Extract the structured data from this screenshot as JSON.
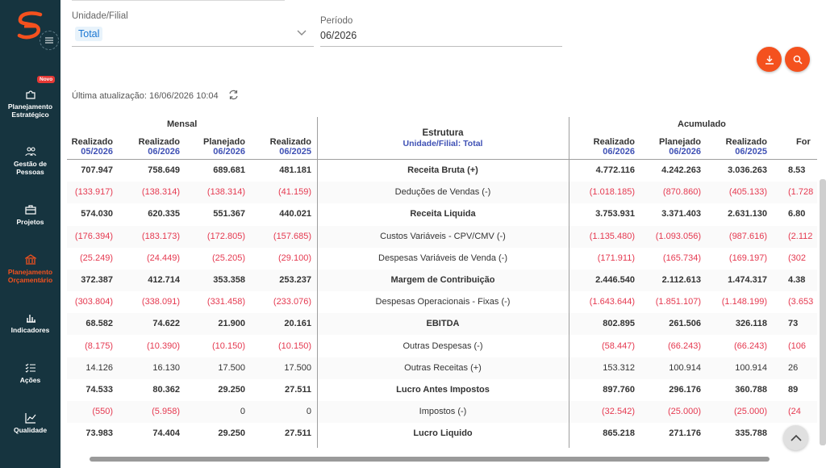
{
  "sidebar": {
    "badge": "Novo",
    "items": [
      {
        "label": "Planejamento Estratégico",
        "icon": "puzzle-icon"
      },
      {
        "label": "Gestão de Pessoas",
        "icon": "people-icon"
      },
      {
        "label": "Projetos",
        "icon": "briefcase-icon"
      },
      {
        "label": "Planejamento Orçamentário",
        "icon": "bank-icon"
      },
      {
        "label": "Indicadores",
        "icon": "bar-chart-icon"
      },
      {
        "label": "Ações",
        "icon": "checklist-icon"
      },
      {
        "label": "Qualidade",
        "icon": "line-chart-icon"
      }
    ],
    "active_color": "#f4511e"
  },
  "filters": {
    "unidade_label": "Unidade/Filial",
    "unidade_value": "Total",
    "periodo_label": "Período",
    "periodo_value": "06/2026"
  },
  "update": {
    "text": "Última atualização: 16/06/2026 10:04"
  },
  "table": {
    "group_mensal": "Mensal",
    "group_acumulado": "Acumulado",
    "estrutura_title": "Estrutura",
    "estrutura_sub": "Unidade/Filial: Total",
    "columns_left": [
      {
        "label": "Realizado",
        "sub": "05/2026"
      },
      {
        "label": "Realizado",
        "sub": "06/2026"
      },
      {
        "label": "Planejado",
        "sub": "06/2026"
      },
      {
        "label": "Realizado",
        "sub": "06/2025"
      }
    ],
    "columns_right": [
      {
        "label": "Realizado",
        "sub": "06/2026"
      },
      {
        "label": "Planejado",
        "sub": "06/2026"
      },
      {
        "label": "Realizado",
        "sub": "06/2025"
      },
      {
        "label": "For",
        "sub": ""
      }
    ],
    "rows": [
      {
        "name": "Receita Bruta (+)",
        "bold": true,
        "left": [
          "707.947",
          "758.649",
          "689.681",
          "481.181"
        ],
        "right": [
          "4.772.116",
          "4.242.263",
          "3.036.263",
          "8.53"
        ]
      },
      {
        "name": "Deduções de Vendas (-)",
        "bold": false,
        "left": [
          "(133.917)",
          "(138.314)",
          "(138.314)",
          "(41.159)"
        ],
        "right": [
          "(1.018.185)",
          "(870.860)",
          "(405.133)",
          "(1.728"
        ]
      },
      {
        "name": "Receita Liquida",
        "bold": true,
        "left": [
          "574.030",
          "620.335",
          "551.367",
          "440.021"
        ],
        "right": [
          "3.753.931",
          "3.371.403",
          "2.631.130",
          "6.80"
        ]
      },
      {
        "name": "Custos Variáveis - CPV/CMV (-)",
        "bold": false,
        "left": [
          "(176.394)",
          "(183.173)",
          "(172.805)",
          "(157.685)"
        ],
        "right": [
          "(1.135.480)",
          "(1.093.056)",
          "(987.616)",
          "(2.112"
        ]
      },
      {
        "name": "Despesas Variáveis de Venda (-)",
        "bold": false,
        "left": [
          "(25.249)",
          "(24.449)",
          "(25.205)",
          "(29.100)"
        ],
        "right": [
          "(171.911)",
          "(165.734)",
          "(169.197)",
          "(302"
        ]
      },
      {
        "name": "Margem de Contribuição",
        "bold": true,
        "left": [
          "372.387",
          "412.714",
          "353.358",
          "253.237"
        ],
        "right": [
          "2.446.540",
          "2.112.613",
          "1.474.317",
          "4.38"
        ]
      },
      {
        "name": "Despesas Operacionais - Fixas (-)",
        "bold": false,
        "left": [
          "(303.804)",
          "(338.091)",
          "(331.458)",
          "(233.076)"
        ],
        "right": [
          "(1.643.644)",
          "(1.851.107)",
          "(1.148.199)",
          "(3.653"
        ]
      },
      {
        "name": "EBITDA",
        "bold": true,
        "left": [
          "68.582",
          "74.622",
          "21.900",
          "20.161"
        ],
        "right": [
          "802.895",
          "261.506",
          "326.118",
          "73"
        ]
      },
      {
        "name": "Outras Despesas (-)",
        "bold": false,
        "left": [
          "(8.175)",
          "(10.390)",
          "(10.150)",
          "(10.150)"
        ],
        "right": [
          "(58.447)",
          "(66.243)",
          "(66.243)",
          "(106"
        ]
      },
      {
        "name": "Outras Receitas (+)",
        "bold": false,
        "left": [
          "14.126",
          "16.130",
          "17.500",
          "17.500"
        ],
        "right": [
          "153.312",
          "100.914",
          "100.914",
          "26"
        ]
      },
      {
        "name": "Lucro Antes Impostos",
        "bold": true,
        "left": [
          "74.533",
          "80.362",
          "29.250",
          "27.511"
        ],
        "right": [
          "897.760",
          "296.176",
          "360.788",
          "89"
        ]
      },
      {
        "name": "Impostos (-)",
        "bold": false,
        "left": [
          "(550)",
          "(5.958)",
          "0",
          "0"
        ],
        "right": [
          "(32.542)",
          "(25.000)",
          "(25.000)",
          "(24"
        ]
      },
      {
        "name": "Lucro Liquido",
        "bold": true,
        "left": [
          "73.983",
          "74.404",
          "29.250",
          "27.511"
        ],
        "right": [
          "865.218",
          "271.176",
          "335.788",
          "65"
        ]
      }
    ],
    "negative_color": "#e53950",
    "header_sub_color": "#3f51b5"
  },
  "colors": {
    "sidebar_bg": "#16343f",
    "accent": "#f4511e"
  }
}
